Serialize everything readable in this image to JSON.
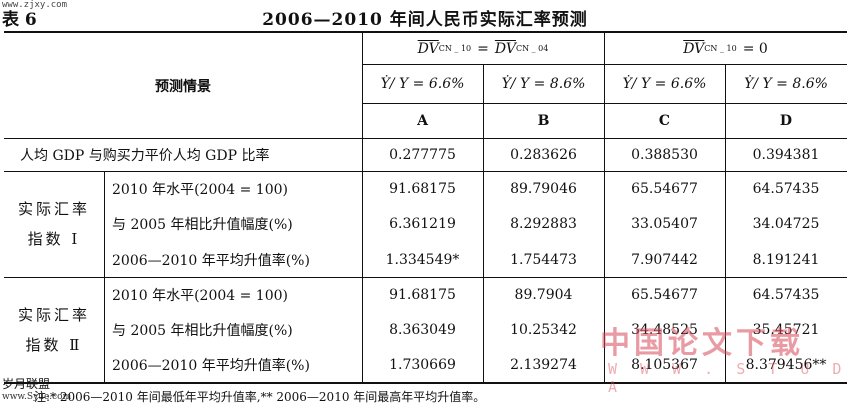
{
  "watermark_top": "www.zjxy.com",
  "table_number": "表 6",
  "title": "2006—2010 年间人民币实际汇率预测",
  "header": {
    "scenario_label": "预测情景",
    "group1_lhs_var": "DV",
    "group1_lhs_sub": "CN _ 10",
    "group1_eq": "=",
    "group1_rhs_var": "DV",
    "group1_rhs_sub": "CN _ 04",
    "group2_lhs_var": "DV",
    "group2_lhs_sub": "CN _ 10",
    "group2_eq": "= 0",
    "growth_a": "Ẏ/ Y = 6.6%",
    "growth_b": "Ẏ/ Y = 8.6%",
    "growth_c": "Ẏ/ Y = 6.6%",
    "growth_d": "Ẏ/ Y = 8.6%",
    "col_a": "A",
    "col_b": "B",
    "col_c": "C",
    "col_d": "D"
  },
  "gdp_row": {
    "label": "人均 GDP 与购买力平价人均 GDP 比率",
    "values": [
      "0.277775",
      "0.283626",
      "0.388530",
      "0.394381"
    ]
  },
  "group1": {
    "label_line1": "实际汇率",
    "label_line2": "指数 Ⅰ",
    "rows": [
      {
        "label": "2010 年水平(2004 = 100)",
        "values": [
          "91.68175",
          "89.79046",
          "65.54677",
          "64.57435"
        ]
      },
      {
        "label": "与 2005 年相比升值幅度(%)",
        "values": [
          "6.361219",
          "8.292883",
          "33.05407",
          "34.04725"
        ]
      },
      {
        "label": "2006—2010 年平均升值率(%)",
        "values": [
          "1.334549*",
          "1.754473",
          "7.907442",
          "8.191241"
        ]
      }
    ]
  },
  "group2": {
    "label_line1": "实际汇率",
    "label_line2": "指数 Ⅱ",
    "rows": [
      {
        "label": "2010 年水平(2004 = 100)",
        "values": [
          "91.68175",
          "89.7904",
          "65.54677",
          "64.57435"
        ]
      },
      {
        "label": "与 2005 年相比升值幅度(%)",
        "values": [
          "8.363049",
          "10.25342",
          "34.48525",
          "35.45721"
        ]
      },
      {
        "label": "2006—2010 年平均升值率(%)",
        "values": [
          "1.730669",
          "2.139274",
          "8.105367",
          "8.379456**"
        ]
      }
    ]
  },
  "note": "注:* 2006—2010 年间最低年平均升值率,** 2006—2010 年间最高年平均升值率。",
  "watermark_bottom_left": "岁月联盟",
  "watermark_bottom_left_url": "www.Syue.com",
  "watermark_stamp": "中国论文下载",
  "watermark_stamp_url": "W W W . S T U D A"
}
